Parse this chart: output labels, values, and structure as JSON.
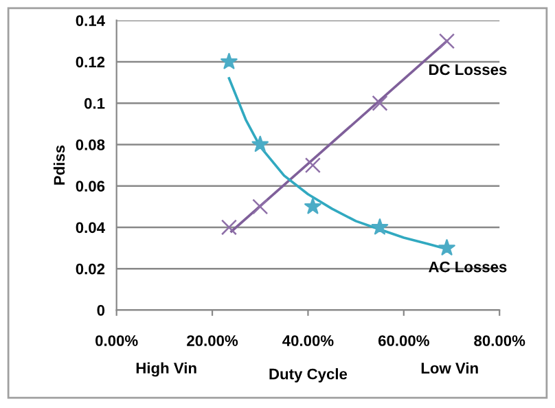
{
  "chart_data": {
    "type": "scatter",
    "xlabel": "Duty Cycle",
    "ylabel": "Pdiss",
    "annotations": [
      "High Vin",
      "Low Vin"
    ],
    "xlim": [
      0,
      0.8
    ],
    "xticks": [
      {
        "value": 0,
        "label": "0.00%"
      },
      {
        "value": 0.2,
        "label": "20.00%"
      },
      {
        "value": 0.4,
        "label": "40.00%"
      },
      {
        "value": 0.6,
        "label": "60.00%"
      },
      {
        "value": 0.8,
        "label": "80.00%"
      }
    ],
    "ylim": [
      0,
      0.14
    ],
    "yticks": [
      0,
      0.02,
      0.04,
      0.06,
      0.08,
      {
        "value": 0.1,
        "label": "0.1"
      },
      0.12,
      0.14
    ],
    "grid": "y",
    "legend": false,
    "series": [
      {
        "name": "DC Losses",
        "marker": "cross",
        "color": "#8e6fa8",
        "x": [
          0.235,
          0.3,
          0.41,
          0.55,
          0.69
        ],
        "values": [
          0.04,
          0.05,
          0.07,
          0.1,
          0.13
        ]
      },
      {
        "name": "AC Losses",
        "marker": "star",
        "color": "#4bacc6",
        "x": [
          0.235,
          0.3,
          0.41,
          0.55,
          0.69
        ],
        "values": [
          0.12,
          0.08,
          0.05,
          0.04,
          0.03
        ]
      },
      {
        "type": "line",
        "color": "#7f5f9a",
        "x": [
          0.24,
          0.69
        ],
        "values": [
          0.038,
          0.13
        ]
      },
      {
        "type": "line",
        "color": "#31a9c0",
        "x": [
          0.235,
          0.27,
          0.3,
          0.35,
          0.4,
          0.45,
          0.5,
          0.55,
          0.6,
          0.65,
          0.69
        ],
        "values": [
          0.112,
          0.092,
          0.079,
          0.065,
          0.056,
          0.049,
          0.043,
          0.039,
          0.035,
          0.032,
          0.0295
        ]
      }
    ]
  }
}
